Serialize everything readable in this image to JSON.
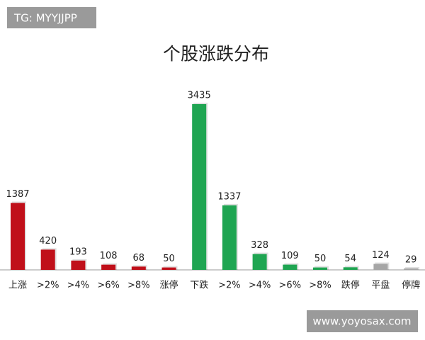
{
  "chart_data": {
    "type": "bar",
    "title": "个股涨跌分布",
    "categories": [
      "上涨",
      ">2%",
      ">4%",
      ">6%",
      ">8%",
      "涨停",
      "下跌",
      ">2%",
      ">4%",
      ">6%",
      ">8%",
      "跌停",
      "平盘",
      "停牌"
    ],
    "values": [
      1387,
      420,
      193,
      108,
      68,
      50,
      3435,
      1337,
      328,
      109,
      50,
      54,
      124,
      29
    ],
    "colors": [
      "#c0101a",
      "#c0101a",
      "#c0101a",
      "#c0101a",
      "#c0101a",
      "#c0101a",
      "#1fa552",
      "#1fa552",
      "#1fa552",
      "#1fa552",
      "#1fa552",
      "#1fa552",
      "#a6a6a6",
      "#a6a6a6"
    ],
    "watermarks": [
      "TG: MYYJJPP",
      "www.yoyosax.com"
    ]
  }
}
